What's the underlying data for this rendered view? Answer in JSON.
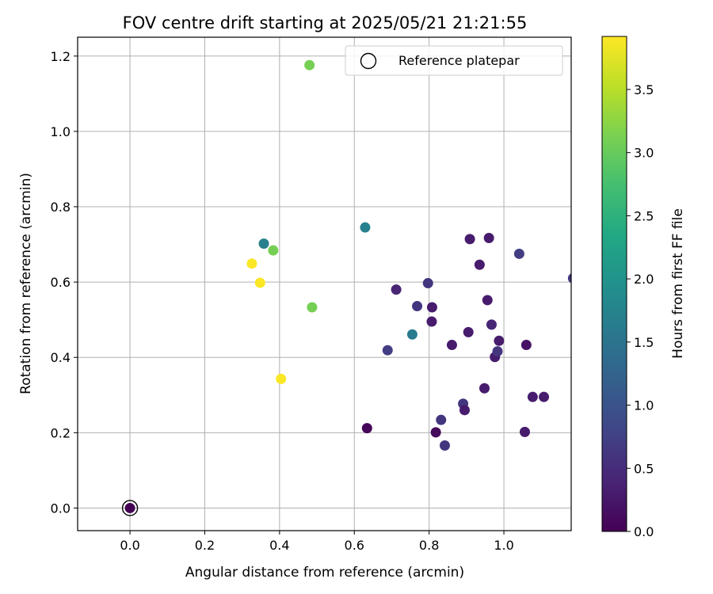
{
  "chart_data": {
    "type": "scatter",
    "title": "FOV centre drift starting at 2025/05/21 21:21:55",
    "xlabel": "Angular distance from reference (arcmin)",
    "ylabel": "Rotation from reference (arcmin)",
    "xlim": [
      -0.14,
      1.18
    ],
    "ylim": [
      -0.06,
      1.25
    ],
    "xticks": [
      0.0,
      0.2,
      0.4,
      0.6,
      0.8,
      1.0
    ],
    "xtick_labels": [
      "0.0",
      "0.2",
      "0.4",
      "0.6",
      "0.8",
      "1.0"
    ],
    "yticks": [
      0.0,
      0.2,
      0.4,
      0.6,
      0.8,
      1.0,
      1.2
    ],
    "ytick_labels": [
      "0.0",
      "0.2",
      "0.4",
      "0.6",
      "0.8",
      "1.0",
      "1.2"
    ],
    "grid": true,
    "legend": {
      "position": "top-right",
      "entries": [
        "Reference platepar"
      ]
    },
    "reference_point": {
      "x": 0.0,
      "y": 0.0,
      "hours": 0.0
    },
    "colorbar": {
      "label": "Hours from first FF file",
      "colormap": "viridis",
      "min": 0.0,
      "max": 3.92,
      "ticks": [
        0.0,
        0.5,
        1.0,
        1.5,
        2.0,
        2.5,
        3.0,
        3.5
      ],
      "tick_labels": [
        "0.0",
        "0.5",
        "1.0",
        "1.5",
        "2.0",
        "2.5",
        "3.0",
        "3.5"
      ]
    },
    "points": [
      {
        "x": 0.0,
        "y": 0.0,
        "hours": 0.0
      },
      {
        "x": 0.48,
        "y": 1.176,
        "hours": 3.1
      },
      {
        "x": 0.358,
        "y": 0.702,
        "hours": 1.7
      },
      {
        "x": 0.383,
        "y": 0.684,
        "hours": 3.1
      },
      {
        "x": 0.326,
        "y": 0.649,
        "hours": 3.9
      },
      {
        "x": 0.348,
        "y": 0.598,
        "hours": 3.9
      },
      {
        "x": 0.487,
        "y": 0.533,
        "hours": 3.1
      },
      {
        "x": 0.404,
        "y": 0.343,
        "hours": 3.9
      },
      {
        "x": 0.629,
        "y": 0.745,
        "hours": 1.7
      },
      {
        "x": 0.755,
        "y": 0.461,
        "hours": 1.6
      },
      {
        "x": 0.634,
        "y": 0.212,
        "hours": 0.05
      },
      {
        "x": 0.689,
        "y": 0.419,
        "hours": 0.7
      },
      {
        "x": 0.712,
        "y": 0.58,
        "hours": 0.4
      },
      {
        "x": 0.768,
        "y": 0.536,
        "hours": 0.6
      },
      {
        "x": 0.797,
        "y": 0.597,
        "hours": 0.6
      },
      {
        "x": 0.808,
        "y": 0.533,
        "hours": 0.3
      },
      {
        "x": 0.807,
        "y": 0.495,
        "hours": 0.3
      },
      {
        "x": 0.818,
        "y": 0.201,
        "hours": 0.1
      },
      {
        "x": 0.832,
        "y": 0.234,
        "hours": 0.6
      },
      {
        "x": 0.842,
        "y": 0.166,
        "hours": 0.6
      },
      {
        "x": 0.861,
        "y": 0.433,
        "hours": 0.3
      },
      {
        "x": 0.891,
        "y": 0.277,
        "hours": 0.6
      },
      {
        "x": 0.895,
        "y": 0.26,
        "hours": 0.3
      },
      {
        "x": 0.905,
        "y": 0.467,
        "hours": 0.3
      },
      {
        "x": 0.909,
        "y": 0.714,
        "hours": 0.3
      },
      {
        "x": 0.935,
        "y": 0.646,
        "hours": 0.3
      },
      {
        "x": 0.948,
        "y": 0.318,
        "hours": 0.3
      },
      {
        "x": 0.956,
        "y": 0.552,
        "hours": 0.3
      },
      {
        "x": 0.96,
        "y": 0.717,
        "hours": 0.3
      },
      {
        "x": 0.967,
        "y": 0.487,
        "hours": 0.4
      },
      {
        "x": 0.976,
        "y": 0.401,
        "hours": 0.3
      },
      {
        "x": 0.983,
        "y": 0.416,
        "hours": 0.6
      },
      {
        "x": 0.987,
        "y": 0.444,
        "hours": 0.3
      },
      {
        "x": 1.041,
        "y": 0.675,
        "hours": 0.7
      },
      {
        "x": 1.056,
        "y": 0.202,
        "hours": 0.3
      },
      {
        "x": 1.06,
        "y": 0.433,
        "hours": 0.2
      },
      {
        "x": 1.077,
        "y": 0.295,
        "hours": 0.3
      },
      {
        "x": 1.107,
        "y": 0.295,
        "hours": 0.3
      },
      {
        "x": 1.185,
        "y": 0.61,
        "hours": 0.6
      }
    ]
  }
}
